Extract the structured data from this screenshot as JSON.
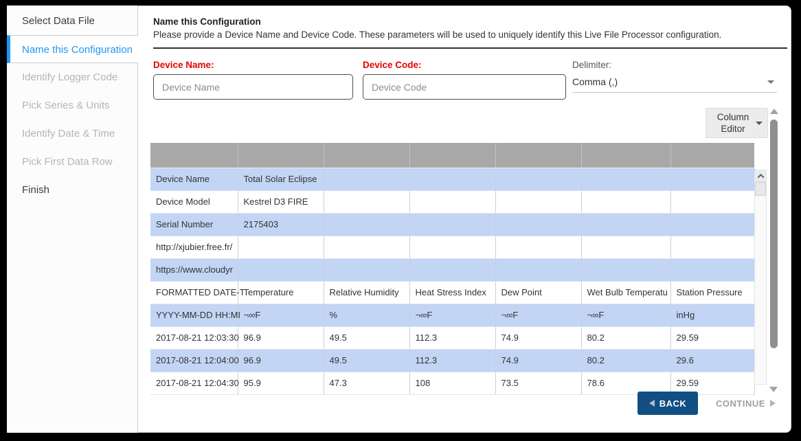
{
  "sidebar": {
    "items": [
      {
        "label": "Select Data File",
        "state": "enabled"
      },
      {
        "label": "Name this Configuration",
        "state": "active"
      },
      {
        "label": "Identify Logger Code",
        "state": "disabled"
      },
      {
        "label": "Pick Series & Units",
        "state": "disabled"
      },
      {
        "label": "Identify Date & Time",
        "state": "disabled"
      },
      {
        "label": "Pick First Data Row",
        "state": "disabled"
      },
      {
        "label": "Finish",
        "state": "enabled"
      }
    ]
  },
  "header": {
    "title": "Name this Configuration",
    "description": "Please provide a Device Name and Device Code. These parameters will be used to uniquely identify this Live File Processor configuration."
  },
  "form": {
    "device_name": {
      "label": "Device Name:",
      "placeholder": "Device Name",
      "value": ""
    },
    "device_code": {
      "label": "Device Code:",
      "placeholder": "Device Code",
      "value": ""
    },
    "delimiter": {
      "label": "Delimiter:",
      "selected": "Comma (,)"
    }
  },
  "column_editor": {
    "label": "Column Editor"
  },
  "table": {
    "column_count": 7,
    "header_cells": [
      "",
      "",
      "",
      "",
      "",
      "",
      ""
    ],
    "rows": [
      [
        "Device Name",
        "Total Solar Eclipse",
        "",
        "",
        "",
        "",
        ""
      ],
      [
        "Device Model",
        "Kestrel D3 FIRE",
        "",
        "",
        "",
        "",
        ""
      ],
      [
        "Serial Number",
        "2175403",
        "",
        "",
        "",
        "",
        ""
      ],
      [
        "http://xjubier.free.fr/",
        "",
        "",
        "",
        "",
        "",
        ""
      ],
      [
        "https://www.cloudyr",
        "",
        "",
        "",
        "",
        "",
        ""
      ],
      [
        "FORMATTED DATE-T",
        "Temperature",
        "Relative Humidity",
        "Heat Stress Index",
        "Dew Point",
        "Wet Bulb Temperatu",
        "Station Pressure"
      ],
      [
        "YYYY-MM-DD HH:MI",
        "¬∞F",
        "%",
        "¬∞F",
        "¬∞F",
        "¬∞F",
        "inHg"
      ],
      [
        "2017-08-21 12:03:30",
        "96.9",
        "49.5",
        "112.3",
        "74.9",
        "80.2",
        "29.59"
      ],
      [
        "2017-08-21 12:04:00",
        "96.9",
        "49.5",
        "112.3",
        "74.9",
        "80.2",
        "29.6"
      ],
      [
        "2017-08-21 12:04:30",
        "95.9",
        "47.3",
        "108",
        "73.5",
        "78.6",
        "29.59"
      ]
    ]
  },
  "footer": {
    "back_label": "BACK",
    "continue_label": "CONTINUE"
  },
  "icons": {
    "delimiter_caret": "chevron-down",
    "column_editor_caret": "chevron-down",
    "back_arrow": "triangle-left",
    "continue_arrow": "triangle-right",
    "scroll_arrows": "triangle-up / triangle-down / chevron-up"
  },
  "colors": {
    "accent_blue": "#2196f3",
    "label_red": "#e60000",
    "back_button_blue": "#114e83",
    "row_highlight_blue": "#c2d5f4",
    "table_header_gray": "#a8a8a8",
    "canvas_border": "#000000"
  }
}
